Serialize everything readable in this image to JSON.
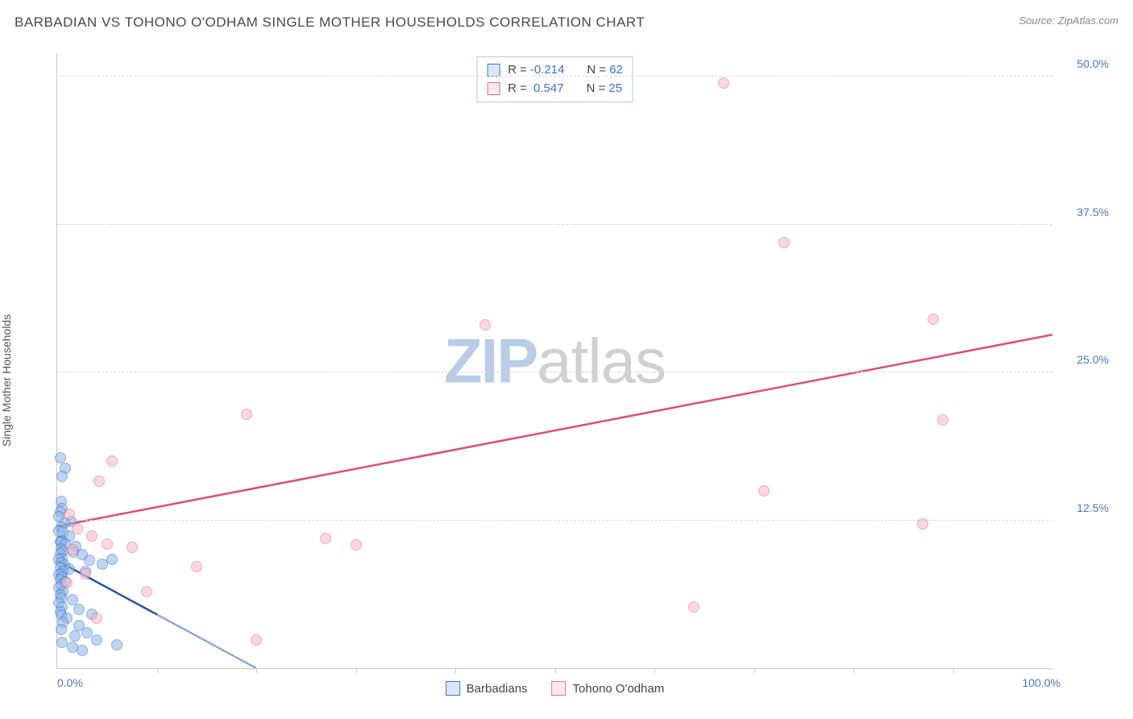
{
  "title": "BARBADIAN VS TOHONO O'ODHAM SINGLE MOTHER HOUSEHOLDS CORRELATION CHART",
  "source": "Source: ZipAtlas.com",
  "ylabel": "Single Mother Households",
  "watermark": {
    "part1": "ZIP",
    "part2": "atlas"
  },
  "chart": {
    "type": "scatter-with-trend",
    "background_color": "#ffffff",
    "grid_color": "#d6d6d6",
    "axis_color": "#c8c8c8",
    "tick_color": "#4a76c7",
    "xlim": [
      0,
      100
    ],
    "ylim": [
      0,
      52
    ],
    "y_gridlines": [
      12.5,
      25,
      37.5,
      50
    ],
    "y_tick_labels": [
      "12.5%",
      "25.0%",
      "37.5%",
      "50.0%"
    ],
    "x_minor_ticks": [
      10,
      20,
      30,
      40,
      50,
      60,
      70,
      80,
      90
    ],
    "x_tick_left": "0.0%",
    "x_tick_right": "100.0%",
    "marker_radius": 7,
    "marker_opacity": 0.22,
    "line_width": 2.5,
    "series": [
      {
        "key": "barbadians",
        "label": "Barbadians",
        "fill": "#8fb7ea",
        "stroke": "#3e78c9",
        "line_color": "#2254a3",
        "r_label": "R =",
        "n_label": "N =",
        "r": "-0.214",
        "n": "62",
        "trend": {
          "x1": 0,
          "y1": 9.1,
          "x2": 20,
          "y2": 0,
          "dash_from_x": 10
        },
        "points": [
          {
            "x": 0.3,
            "y": 17.8
          },
          {
            "x": 0.8,
            "y": 16.9
          },
          {
            "x": 0.5,
            "y": 16.2
          },
          {
            "x": 0.4,
            "y": 14.1
          },
          {
            "x": 0.5,
            "y": 13.5
          },
          {
            "x": 0.3,
            "y": 13.2
          },
          {
            "x": 0.2,
            "y": 12.8
          },
          {
            "x": 1.4,
            "y": 12.4
          },
          {
            "x": 0.7,
            "y": 12.3
          },
          {
            "x": 0.4,
            "y": 11.9
          },
          {
            "x": 0.2,
            "y": 11.6
          },
          {
            "x": 0.6,
            "y": 11.5
          },
          {
            "x": 1.2,
            "y": 11.2
          },
          {
            "x": 0.5,
            "y": 10.8
          },
          {
            "x": 0.3,
            "y": 10.7
          },
          {
            "x": 0.4,
            "y": 10.6
          },
          {
            "x": 0.8,
            "y": 10.5
          },
          {
            "x": 1.9,
            "y": 10.3
          },
          {
            "x": 0.4,
            "y": 10.1
          },
          {
            "x": 0.6,
            "y": 9.9
          },
          {
            "x": 1.6,
            "y": 9.8
          },
          {
            "x": 0.3,
            "y": 9.7
          },
          {
            "x": 2.5,
            "y": 9.6
          },
          {
            "x": 0.5,
            "y": 9.3
          },
          {
            "x": 0.2,
            "y": 9.2
          },
          {
            "x": 3.2,
            "y": 9.1
          },
          {
            "x": 4.5,
            "y": 8.8
          },
          {
            "x": 0.4,
            "y": 8.9
          },
          {
            "x": 0.7,
            "y": 8.7
          },
          {
            "x": 0.3,
            "y": 8.5
          },
          {
            "x": 1.2,
            "y": 8.4
          },
          {
            "x": 0.6,
            "y": 8.2
          },
          {
            "x": 0.4,
            "y": 8.0
          },
          {
            "x": 0.2,
            "y": 7.9
          },
          {
            "x": 2.8,
            "y": 8.2
          },
          {
            "x": 0.5,
            "y": 7.7
          },
          {
            "x": 0.3,
            "y": 7.5
          },
          {
            "x": 0.8,
            "y": 7.3
          },
          {
            "x": 0.4,
            "y": 7.0
          },
          {
            "x": 0.2,
            "y": 6.8
          },
          {
            "x": 5.5,
            "y": 9.2
          },
          {
            "x": 0.6,
            "y": 6.5
          },
          {
            "x": 0.3,
            "y": 6.2
          },
          {
            "x": 0.4,
            "y": 5.9
          },
          {
            "x": 1.5,
            "y": 5.8
          },
          {
            "x": 0.2,
            "y": 5.5
          },
          {
            "x": 0.5,
            "y": 5.2
          },
          {
            "x": 2.2,
            "y": 5.0
          },
          {
            "x": 0.3,
            "y": 4.8
          },
          {
            "x": 0.4,
            "y": 4.5
          },
          {
            "x": 3.5,
            "y": 4.6
          },
          {
            "x": 1.0,
            "y": 4.2
          },
          {
            "x": 0.6,
            "y": 3.9
          },
          {
            "x": 2.2,
            "y": 3.6
          },
          {
            "x": 0.4,
            "y": 3.3
          },
          {
            "x": 3.0,
            "y": 3.0
          },
          {
            "x": 1.8,
            "y": 2.7
          },
          {
            "x": 4.0,
            "y": 2.4
          },
          {
            "x": 6.0,
            "y": 2.0
          },
          {
            "x": 0.5,
            "y": 2.2
          },
          {
            "x": 1.5,
            "y": 1.8
          },
          {
            "x": 2.5,
            "y": 1.5
          }
        ]
      },
      {
        "key": "tohono",
        "label": "Tohono O'odham",
        "fill": "#f5b9c9",
        "stroke": "#e56d8e",
        "line_color": "#e14b7a",
        "r_label": "R =",
        "n_label": "N =",
        "r": "0.547",
        "n": "25",
        "trend": {
          "x1": 0,
          "y1": 12.0,
          "x2": 100,
          "y2": 28.2
        },
        "points": [
          {
            "x": 67,
            "y": 49.5
          },
          {
            "x": 73,
            "y": 36.0
          },
          {
            "x": 88,
            "y": 29.5
          },
          {
            "x": 43,
            "y": 29.0
          },
          {
            "x": 19,
            "y": 21.5
          },
          {
            "x": 89,
            "y": 21.0
          },
          {
            "x": 5.5,
            "y": 17.5
          },
          {
            "x": 4.2,
            "y": 15.8
          },
          {
            "x": 71,
            "y": 15.0
          },
          {
            "x": 1.2,
            "y": 13.0
          },
          {
            "x": 87,
            "y": 12.2
          },
          {
            "x": 2.0,
            "y": 11.8
          },
          {
            "x": 3.5,
            "y": 11.2
          },
          {
            "x": 5.0,
            "y": 10.5
          },
          {
            "x": 7.5,
            "y": 10.2
          },
          {
            "x": 1.5,
            "y": 10.0
          },
          {
            "x": 27,
            "y": 11.0
          },
          {
            "x": 30,
            "y": 10.4
          },
          {
            "x": 14,
            "y": 8.6
          },
          {
            "x": 2.8,
            "y": 8.0
          },
          {
            "x": 9.0,
            "y": 6.5
          },
          {
            "x": 64,
            "y": 5.2
          },
          {
            "x": 4.0,
            "y": 4.2
          },
          {
            "x": 20,
            "y": 2.4
          },
          {
            "x": 1.0,
            "y": 7.2
          }
        ]
      }
    ]
  }
}
